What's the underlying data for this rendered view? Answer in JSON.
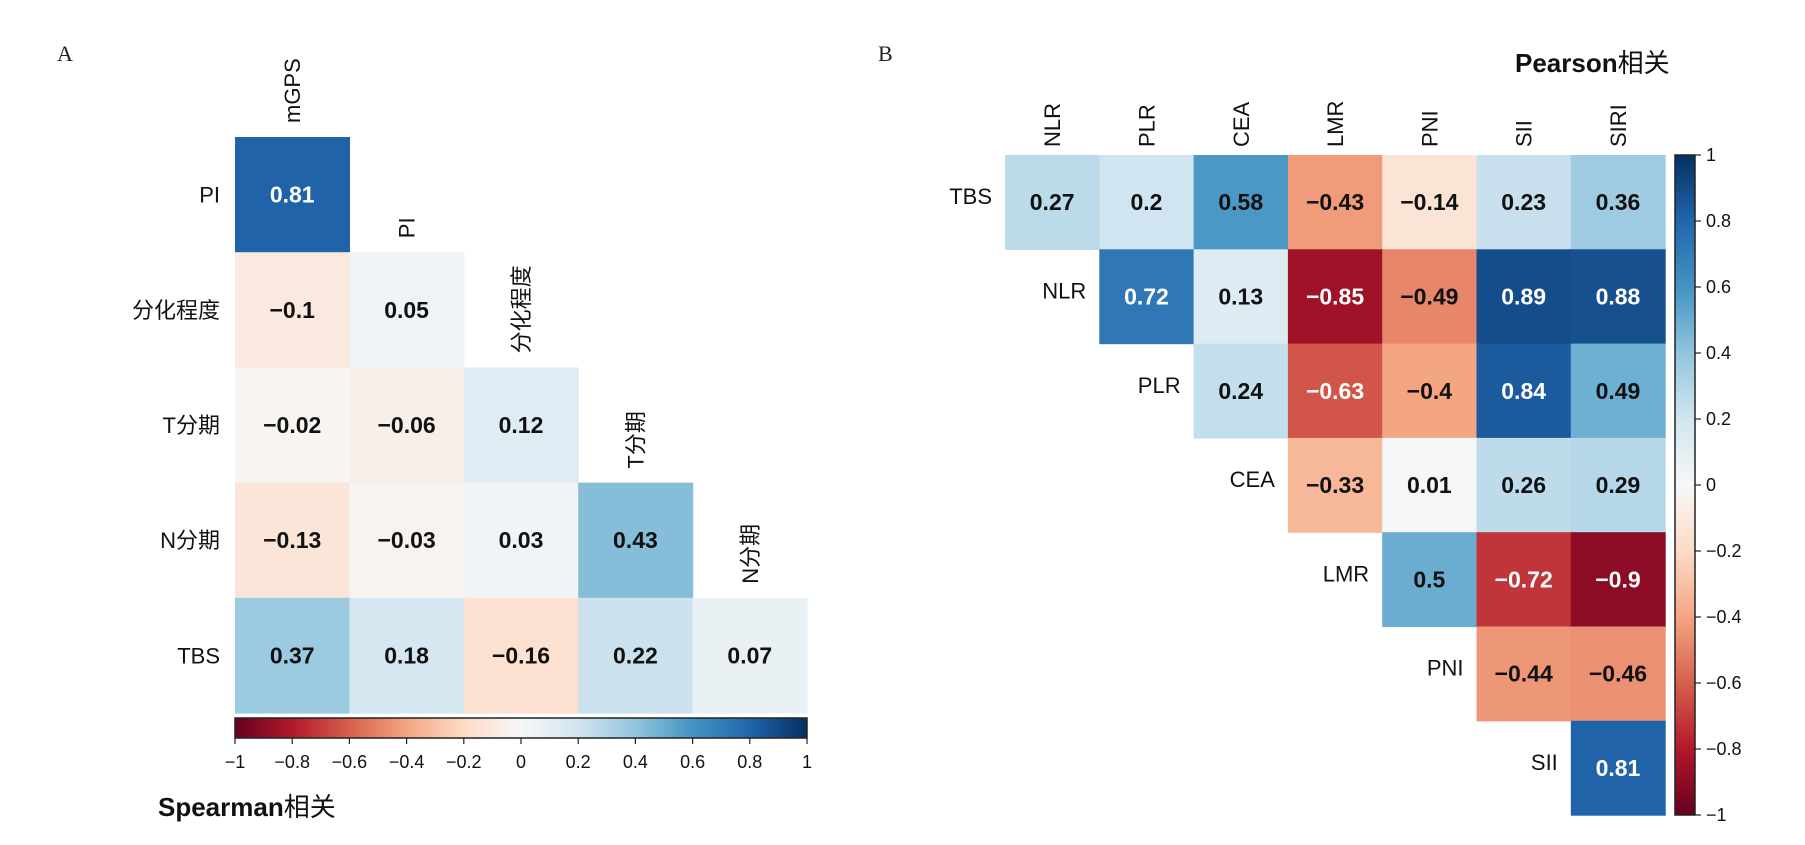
{
  "chart_data": [
    {
      "type": "heatmap",
      "panel": "A",
      "subtype": "lower-triangular correlation matrix",
      "rows": [
        "PI",
        "分化程度",
        "T分期",
        "N分期",
        "TBS"
      ],
      "columns": [
        "mGPS",
        "PI",
        "分化程度",
        "T分期",
        "N分期"
      ],
      "values": [
        [
          0.81
        ],
        [
          -0.1,
          0.05
        ],
        [
          -0.02,
          -0.06,
          0.12
        ],
        [
          -0.13,
          -0.03,
          0.03,
          0.43
        ],
        [
          0.37,
          0.18,
          -0.16,
          0.22,
          0.07
        ]
      ],
      "labels": [
        [
          "0.81"
        ],
        [
          "−0.1",
          "0.05"
        ],
        [
          "−0.02",
          "−0.06",
          "0.12"
        ],
        [
          "−0.13",
          "−0.03",
          "0.03",
          "0.43"
        ],
        [
          "0.37",
          "0.18",
          "−0.16",
          "0.22",
          "0.07"
        ]
      ],
      "colorbar": {
        "orientation": "horizontal",
        "range": [
          -1,
          1
        ],
        "ticks": [
          "−1",
          "−0.8",
          "−0.6",
          "−0.4",
          "−0.2",
          "0",
          "0.2",
          "0.4",
          "0.6",
          "0.8",
          "1"
        ],
        "title_bold": "Spearman",
        "title_rest": "相关"
      },
      "colormap": "RdBu (red = negative, blue = positive)"
    },
    {
      "type": "heatmap",
      "panel": "B",
      "subtype": "upper-triangular correlation matrix",
      "rows": [
        "TBS",
        "NLR",
        "PLR",
        "CEA",
        "LMR",
        "PNI",
        "SII"
      ],
      "columns": [
        "NLR",
        "PLR",
        "CEA",
        "LMR",
        "PNI",
        "SII",
        "SIRI"
      ],
      "values": [
        [
          0.27,
          0.2,
          0.58,
          -0.43,
          -0.14,
          0.23,
          0.36
        ],
        [
          0.72,
          0.13,
          -0.85,
          -0.49,
          0.89,
          0.88
        ],
        [
          0.24,
          -0.63,
          -0.4,
          0.84,
          0.49
        ],
        [
          -0.33,
          0.01,
          0.26,
          0.29
        ],
        [
          0.5,
          -0.72,
          -0.9
        ],
        [
          -0.44,
          -0.46
        ],
        [
          0.81
        ]
      ],
      "labels": [
        [
          "0.27",
          "0.2",
          "0.58",
          "−0.43",
          "−0.14",
          "0.23",
          "0.36"
        ],
        [
          "0.72",
          "0.13",
          "−0.85",
          "−0.49",
          "0.89",
          "0.88"
        ],
        [
          "0.24",
          "−0.63",
          "−0.4",
          "0.84",
          "0.49"
        ],
        [
          "−0.33",
          "0.01",
          "0.26",
          "0.29"
        ],
        [
          "0.5",
          "−0.72",
          "−0.9"
        ],
        [
          "−0.44",
          "−0.46"
        ],
        [
          "0.81"
        ]
      ],
      "colorbar": {
        "orientation": "vertical",
        "range": [
          -1,
          1
        ],
        "ticks": [
          "1",
          "0.8",
          "0.6",
          "0.4",
          "0.2",
          "0",
          "−0.2",
          "−0.4",
          "−0.6",
          "−0.8",
          "−1"
        ],
        "title_bold": "Pearson",
        "title_rest": "相关"
      },
      "colormap": "RdBu (red = negative, blue = positive)"
    }
  ]
}
